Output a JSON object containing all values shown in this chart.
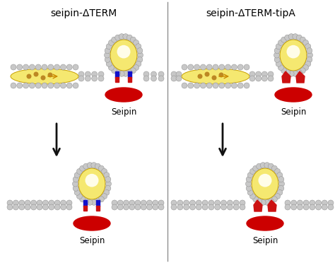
{
  "title_left": "seipin-ΔTERM",
  "title_right": "seipin-ΔTERM-tipA",
  "label_seipin": "Seipin",
  "bg_color": "#ffffff",
  "bead_color": "#c8c8c8",
  "bead_edge_color": "#909090",
  "ld_fill_color": "#f5e870",
  "ld_edge_color": "#c8a000",
  "ld_dot_color": "#b07010",
  "seipin_body_color": "#f5e870",
  "seipin_glow_color": "#fffde8",
  "red_oval_color": "#cc0000",
  "blue_rect_color": "#1111cc",
  "red_tm_color": "#cc1111",
  "divider_color": "#909090",
  "arrow_color": "#111111",
  "title_fontsize": 10,
  "label_fontsize": 8.5,
  "bead_r": 4.0,
  "mem_bead_r": 4.0
}
